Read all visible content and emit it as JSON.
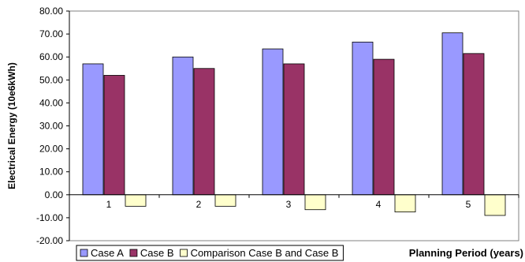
{
  "chart_data": {
    "type": "bar",
    "categories": [
      "1",
      "2",
      "3",
      "4",
      "5"
    ],
    "series": [
      {
        "name": "Case A",
        "values": [
          57.0,
          60.0,
          63.5,
          66.5,
          70.5
        ],
        "color": "#9999ff"
      },
      {
        "name": "Case B",
        "values": [
          52.0,
          55.0,
          57.0,
          59.0,
          61.5
        ],
        "color": "#993366"
      },
      {
        "name": "Comparison Case B and Case B",
        "values": [
          -5.0,
          -5.0,
          -6.5,
          -7.5,
          -9.0
        ],
        "color": "#ffffcc"
      }
    ],
    "xlabel": "Planning Period (years)",
    "ylabel": "Electrical Energy (10e6kWh)",
    "ylim": [
      -20,
      80
    ],
    "ytick_step": 10,
    "ytick_labels": [
      "-20.00",
      "-10.00",
      "0.00",
      "10.00",
      "20.00",
      "30.00",
      "40.00",
      "50.00",
      "60.00",
      "70.00",
      "80.00"
    ],
    "grid": false,
    "legend_position": "bottom"
  }
}
